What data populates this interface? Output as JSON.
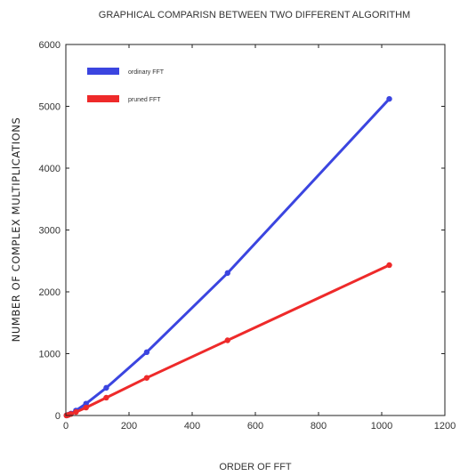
{
  "chart_data": {
    "type": "line",
    "title": "GRAPHICAL COMPARISN BETWEEN TWO DIFFERENT ALGORITHM",
    "xlabel": "ORDER OF FFT",
    "ylabel": "NUMBER OF COMPLEX MULTIPLICATIONS",
    "xlim": [
      0,
      1200
    ],
    "ylim": [
      0,
      6000
    ],
    "xticks": [
      "0",
      "200",
      "400",
      "600",
      "800",
      "1000",
      "1200"
    ],
    "yticks": [
      "0",
      "1000",
      "2000",
      "3000",
      "4000",
      "5000",
      "6000"
    ],
    "grid": false,
    "legend_position": "top-left",
    "series": [
      {
        "name": "ordinary FFT",
        "color": "#3b45e0",
        "x": [
          2,
          4,
          8,
          16,
          32,
          64,
          128,
          256,
          512,
          1024
        ],
        "y": [
          1,
          4,
          12,
          32,
          80,
          192,
          448,
          1024,
          2304,
          5120
        ]
      },
      {
        "name": "pruned FFT",
        "color": "#ee2a2a",
        "x": [
          2,
          4,
          8,
          16,
          32,
          64,
          128,
          256,
          512,
          1024
        ],
        "y": [
          1,
          4,
          10,
          24,
          56,
          128,
          288,
          608,
          1216,
          2432
        ]
      }
    ]
  }
}
